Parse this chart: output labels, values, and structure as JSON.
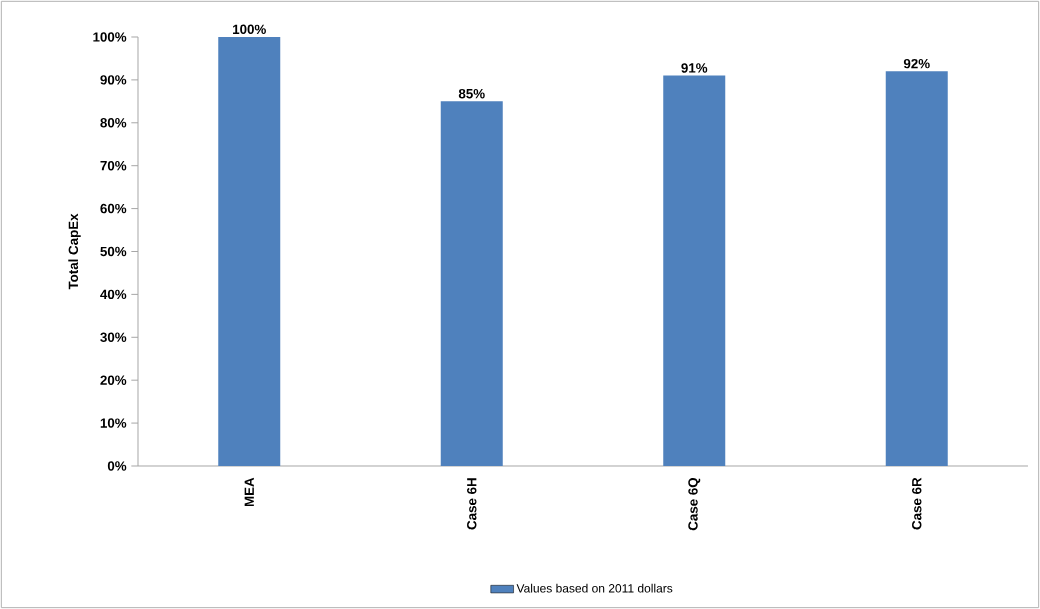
{
  "chart_data": {
    "type": "bar",
    "ylabel": "Total CapEx",
    "categories": [
      "MEA",
      "Case 6H",
      "Case 6Q",
      "Case 6R"
    ],
    "series": [
      {
        "name": "Values based on 2011 dollars",
        "color": "#4f81bd",
        "values": [
          100,
          85,
          91,
          92
        ],
        "value_labels": [
          "100%",
          "85%",
          "91%",
          "92%"
        ]
      }
    ],
    "ylim": [
      0,
      100
    ],
    "yticks": [
      {
        "value": 0,
        "label": "0%"
      },
      {
        "value": 10,
        "label": "10%"
      },
      {
        "value": 20,
        "label": "20%"
      },
      {
        "value": 30,
        "label": "30%"
      },
      {
        "value": 40,
        "label": "40%"
      },
      {
        "value": 50,
        "label": "50%"
      },
      {
        "value": 60,
        "label": "60%"
      },
      {
        "value": 70,
        "label": "70%"
      },
      {
        "value": 80,
        "label": "80%"
      },
      {
        "value": 90,
        "label": "90%"
      },
      {
        "value": 100,
        "label": "100%"
      }
    ],
    "grid": false,
    "legend": "bottom"
  }
}
